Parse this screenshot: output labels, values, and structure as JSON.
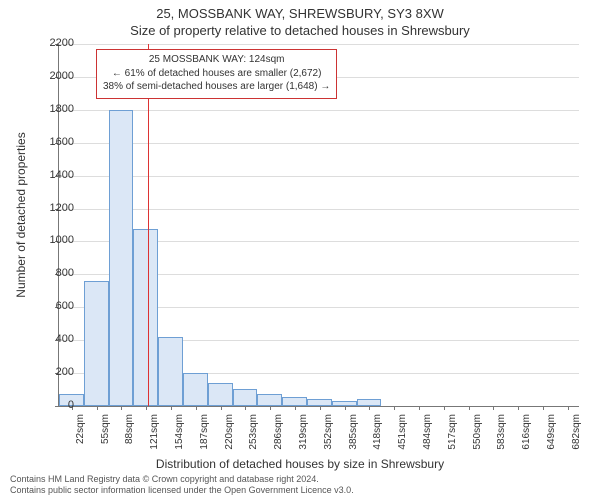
{
  "title_line1": "25, MOSSBANK WAY, SHREWSBURY, SY3 8XW",
  "title_line2": "Size of property relative to detached houses in Shrewsbury",
  "y_axis_label": "Number of detached properties",
  "x_axis_label": "Distribution of detached houses by size in Shrewsbury",
  "footer_line1": "Contains HM Land Registry data © Crown copyright and database right 2024.",
  "footer_line2": "Contains public sector information licensed under the Open Government Licence v3.0.",
  "annotation": {
    "line1": "25 MOSSBANK WAY: 124sqm",
    "line2": "← 61% of detached houses are smaller (2,672)",
    "line3": "38% of semi-detached houses are larger (1,648) →",
    "box_border_color": "#cc3333",
    "box_bg_color": "#ffffff",
    "fontsize": 10
  },
  "chart": {
    "type": "histogram",
    "xlim": [
      5,
      697
    ],
    "ylim": [
      0,
      2200
    ],
    "ytick_step": 200,
    "xtick_start": 22,
    "xtick_step": 33,
    "xtick_count": 21,
    "xtick_unit": "sqm",
    "bar_fill_color": "#dbe7f6",
    "bar_border_color": "#6e9fd4",
    "grid_color": "#dddddd",
    "axis_color": "#777777",
    "background_color": "#ffffff",
    "tick_fontsize": 10,
    "label_fontsize": 12,
    "title_fontsize": 13,
    "marker_value": 124,
    "marker_color": "#dd3333",
    "bars": [
      {
        "x0": 5,
        "x1": 38,
        "count": 75
      },
      {
        "x0": 38,
        "x1": 71,
        "count": 760
      },
      {
        "x0": 71,
        "x1": 104,
        "count": 1800
      },
      {
        "x0": 104,
        "x1": 137,
        "count": 1075
      },
      {
        "x0": 137,
        "x1": 170,
        "count": 420
      },
      {
        "x0": 170,
        "x1": 203,
        "count": 200
      },
      {
        "x0": 203,
        "x1": 236,
        "count": 140
      },
      {
        "x0": 236,
        "x1": 269,
        "count": 105
      },
      {
        "x0": 269,
        "x1": 302,
        "count": 70
      },
      {
        "x0": 302,
        "x1": 335,
        "count": 55
      },
      {
        "x0": 335,
        "x1": 368,
        "count": 45
      },
      {
        "x0": 368,
        "x1": 401,
        "count": 30
      },
      {
        "x0": 401,
        "x1": 434,
        "count": 45
      }
    ]
  }
}
